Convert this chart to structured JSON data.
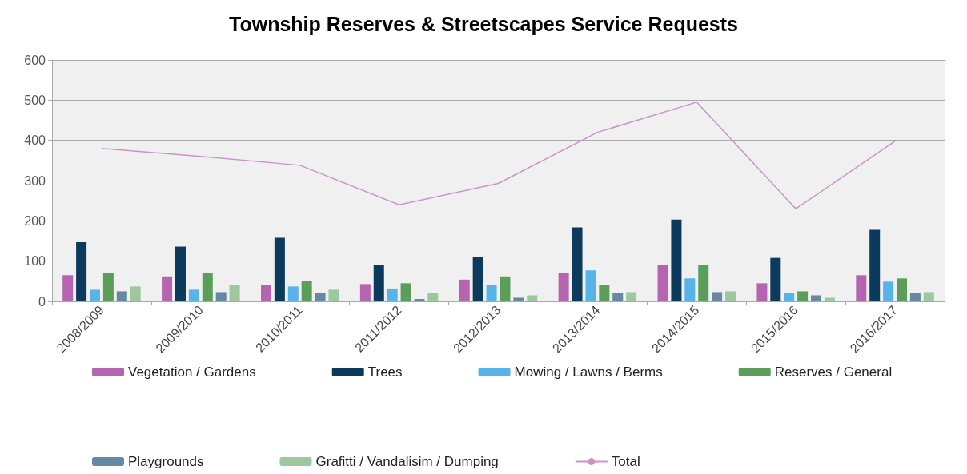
{
  "chart_data": {
    "type": "bar",
    "title": "Township Reserves & Streetscapes Service Requests",
    "categories": [
      "2008/2009",
      "2009/2010",
      "2010/2011",
      "2011/2012",
      "2012/2013",
      "2013/2014",
      "2014/2015",
      "2015/2016",
      "2016/2017"
    ],
    "series": [
      {
        "name": "Vegetation / Gardens",
        "color": "#b565b0",
        "values": [
          65,
          62,
          40,
          43,
          54,
          71,
          91,
          45,
          65
        ]
      },
      {
        "name": "Trees",
        "color": "#0b3a5c",
        "values": [
          147,
          136,
          158,
          91,
          111,
          184,
          203,
          108,
          178
        ]
      },
      {
        "name": "Mowing / Lawns / Berms",
        "color": "#56b4e9",
        "values": [
          29,
          29,
          37,
          32,
          40,
          77,
          57,
          20,
          49
        ]
      },
      {
        "name": "Reserves / General",
        "color": "#5a9e5a",
        "values": [
          71,
          71,
          51,
          45,
          62,
          40,
          91,
          25,
          57
        ]
      },
      {
        "name": "Playgrounds",
        "color": "#6688a3",
        "values": [
          25,
          23,
          20,
          6,
          9,
          20,
          23,
          15,
          20
        ]
      },
      {
        "name": "Grafitti / Vandalisim / Dumping",
        "color": "#9dc79d",
        "values": [
          37,
          40,
          29,
          20,
          15,
          23,
          25,
          9,
          23
        ]
      },
      {
        "name": "Total",
        "type": "line",
        "color": "#c994c7",
        "values": [
          380,
          360,
          338,
          240,
          293,
          420,
          495,
          230,
          398
        ]
      }
    ],
    "ylim": [
      0,
      600
    ],
    "yticks": [
      0,
      100,
      200,
      300,
      400,
      500,
      600
    ],
    "grid": "y",
    "legend": "bottom",
    "marker": "none",
    "line_style": "solid"
  }
}
